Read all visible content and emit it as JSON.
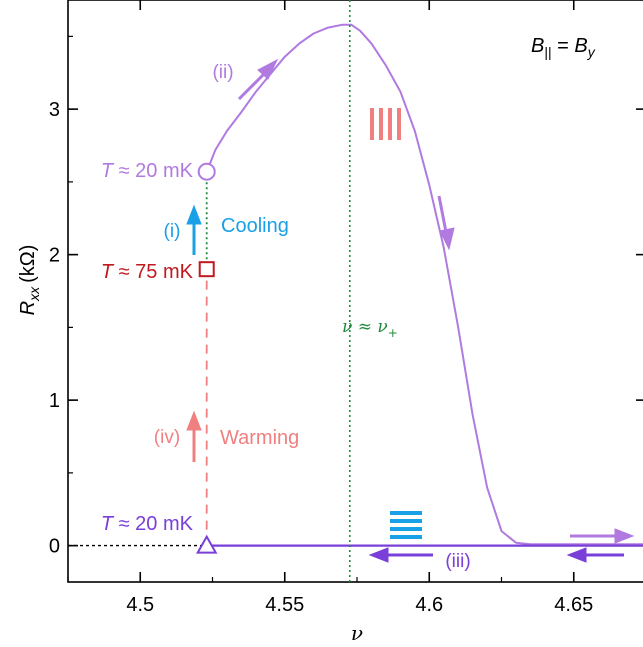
{
  "chart_data": {
    "type": "line",
    "xlabel": "ν",
    "ylabel_main": "R",
    "ylabel_sub": "xx",
    "ylabel_unit": "(kΩ)",
    "xlim": [
      4.475,
      4.675
    ],
    "ylim": [
      -0.25,
      3.75
    ],
    "x_ticks": [
      4.5,
      4.55,
      4.6,
      4.65
    ],
    "x_tick_labels": [
      "4.5",
      "4.55",
      "4.6",
      "4.65"
    ],
    "y_ticks": [
      0,
      1,
      2,
      3
    ],
    "y_tick_labels": [
      "0",
      "1",
      "2",
      "3"
    ],
    "grid": false,
    "field_label": "B|| = By",
    "series": [
      {
        "color": "#b07ae0",
        "x": [
          4.523,
          4.526,
          4.53,
          4.535,
          4.54,
          4.545,
          4.55,
          4.555,
          4.56,
          4.565,
          4.57,
          4.573,
          4.576,
          4.58,
          4.585,
          4.59,
          4.595,
          4.6,
          4.605,
          4.61,
          4.615,
          4.62,
          4.625,
          4.63,
          4.635,
          4.645,
          4.675
        ],
        "y": [
          2.57,
          2.72,
          2.85,
          2.98,
          3.12,
          3.24,
          3.36,
          3.45,
          3.52,
          3.56,
          3.58,
          3.58,
          3.54,
          3.45,
          3.3,
          3.12,
          2.85,
          2.48,
          2.05,
          1.5,
          0.9,
          0.4,
          0.1,
          0.02,
          0.01,
          0.01,
          0.01
        ]
      },
      {
        "color": "#7a3fd8",
        "x": [
          4.523,
          4.55,
          4.6,
          4.65,
          4.675
        ],
        "y": [
          0.0,
          0.0,
          0.0,
          0.0,
          0.0
        ]
      },
      {
        "color": "#f08080",
        "x": [
          4.523,
          4.523
        ],
        "y": [
          0.0,
          1.9
        ]
      },
      {
        "color": "#1e8a3a",
        "x": [
          4.523,
          4.523
        ],
        "y": [
          1.9,
          2.57
        ]
      },
      {
        "color": "#000000",
        "x": [
          4.475,
          4.523
        ],
        "y": [
          0.0,
          0.0
        ]
      }
    ],
    "vline_x": 4.5725,
    "vline_color": "#1e8a3a",
    "vline_label": "ν ≈ ν+",
    "markers": [
      {
        "shape": "circle",
        "x": 4.523,
        "y": 2.57,
        "color": "#b07ae0",
        "label": "T ≈ 20 mK"
      },
      {
        "shape": "square",
        "x": 4.523,
        "y": 1.9,
        "color": "#c0191f",
        "label": "T ≈ 75 mK"
      },
      {
        "shape": "triangle",
        "x": 4.523,
        "y": 0.0,
        "color": "#7a3fd8",
        "label": "T ≈ 20 mK"
      }
    ],
    "annotations": {
      "step_i": "(i)",
      "step_ii": "(ii)",
      "step_iii": "(iii)",
      "step_iv": "(iv)",
      "cooling": "Cooling",
      "warming": "Warming"
    },
    "colors": {
      "upper_curve": "#b07ae0",
      "lower_curve": "#7a3fd8",
      "cooling": "#1aa0e6",
      "warming": "#f08080",
      "hot_marker": "#c0191f",
      "vline": "#1e8a3a"
    }
  }
}
